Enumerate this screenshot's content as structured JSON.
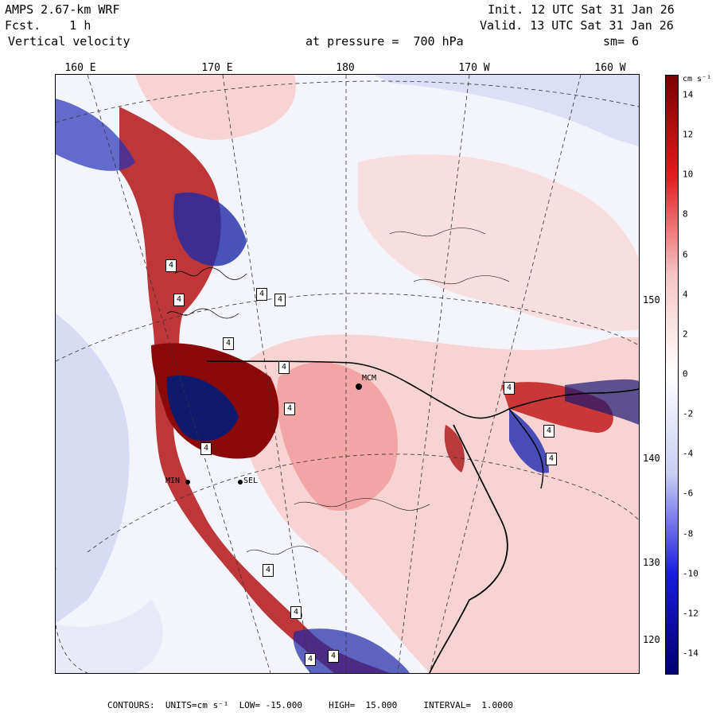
{
  "header": {
    "model": "AMPS 2.67-km WRF",
    "fcst": "Fcst.    1 h",
    "field": "Vertical velocity",
    "init": "Init. 12 UTC Sat 31 Jan 26",
    "valid": "Valid. 13 UTC Sat 31 Jan 26",
    "pressure": "at pressure =  700 hPa",
    "smooth": "sm= 6"
  },
  "lon_labels": [
    "160 E",
    "170 E",
    "180",
    "170 W",
    "160 W"
  ],
  "lat_labels": [
    "150 W",
    "140 W",
    "130 W",
    "120 W"
  ],
  "stations": [
    "MCM",
    "MIN",
    "SEL"
  ],
  "h_label": "4",
  "colorbar": {
    "unit": "cm s⁻¹",
    "ticks": [
      "14",
      "12",
      "10",
      "8",
      "6",
      "4",
      "2",
      "0",
      "-2",
      "-4",
      "-6",
      "-8",
      "-10",
      "-12",
      "-14"
    ],
    "range": [
      -15,
      15
    ],
    "colors": {
      "strong_up": "#7a0000",
      "up": "#e31a1c",
      "weak_up": "#f6c6c6",
      "neutral": "#ffffff",
      "weak_down": "#c9cdf2",
      "down": "#1a1ae0",
      "strong_down": "#00006e"
    }
  },
  "footer": "CONTOURS:  UNITS=cm s⁻¹  LOW= -15.000     HIGH=  15.000     INTERVAL=  1.0000"
}
